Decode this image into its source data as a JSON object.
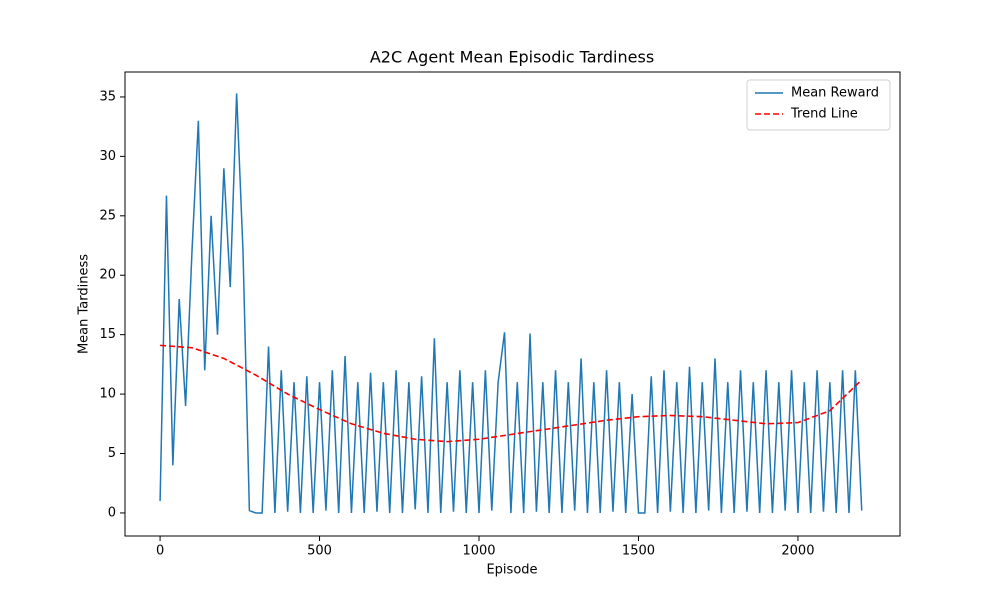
{
  "chart_data": {
    "type": "line",
    "title": "A2C Agent Mean Episodic Tardiness",
    "x_label": "Episode",
    "y_label": "Mean Tardiness",
    "xlim": [
      -110,
      2320
    ],
    "ylim": [
      -1.94,
      37.1
    ],
    "xticks": [
      0,
      500,
      1000,
      1500,
      2000
    ],
    "yticks": [
      0,
      5,
      10,
      15,
      20,
      25,
      30,
      35
    ],
    "legend": "upper right",
    "series": [
      {
        "name": "Mean Reward",
        "color": "#1f77b4",
        "style": "solid",
        "x": [
          0,
          20,
          40,
          60,
          80,
          100,
          120,
          140,
          160,
          180,
          200,
          220,
          240,
          260,
          280,
          300,
          320,
          340,
          360,
          380,
          400,
          420,
          440,
          460,
          480,
          500,
          520,
          540,
          560,
          580,
          600,
          620,
          640,
          660,
          680,
          700,
          720,
          740,
          760,
          780,
          800,
          820,
          840,
          860,
          880,
          900,
          920,
          940,
          960,
          980,
          1000,
          1020,
          1040,
          1060,
          1080,
          1100,
          1120,
          1140,
          1160,
          1180,
          1200,
          1220,
          1240,
          1260,
          1280,
          1300,
          1320,
          1340,
          1360,
          1380,
          1400,
          1420,
          1440,
          1460,
          1480,
          1500,
          1520,
          1540,
          1560,
          1580,
          1600,
          1620,
          1640,
          1660,
          1680,
          1700,
          1720,
          1740,
          1760,
          1780,
          1800,
          1820,
          1840,
          1860,
          1880,
          1900,
          1920,
          1940,
          1960,
          1980,
          2000,
          2020,
          2040,
          2060,
          2080,
          2100,
          2120,
          2140,
          2160,
          2180,
          2200
        ],
        "values": [
          1,
          26.7,
          4,
          18,
          9,
          22,
          33,
          12,
          25,
          15,
          29,
          19,
          35.3,
          22,
          0.2,
          0,
          0,
          14,
          0,
          12,
          0.1,
          11,
          0,
          11.5,
          0,
          11,
          0.2,
          12,
          0,
          13.2,
          0,
          11,
          0,
          11.8,
          0.1,
          11,
          0,
          12,
          0,
          11,
          0.3,
          11.5,
          0,
          14.7,
          0,
          11,
          0.1,
          12,
          0,
          11,
          0,
          12,
          0.2,
          11,
          15.2,
          0,
          11,
          0,
          15.1,
          0.1,
          11,
          0,
          12,
          0,
          11,
          0.2,
          13,
          0,
          11,
          0,
          12,
          0.1,
          11,
          0,
          10,
          0,
          0,
          11.5,
          0,
          12,
          0.1,
          11,
          0,
          12.3,
          0,
          11,
          0.2,
          13,
          0,
          11,
          0,
          12,
          0.1,
          11,
          0,
          12,
          0,
          11,
          0.2,
          12,
          0,
          11,
          0,
          12,
          0.1,
          11,
          0,
          12,
          0,
          12,
          0.2
        ]
      },
      {
        "name": "Trend Line",
        "color": "#ff0000",
        "style": "dashed",
        "x": [
          0,
          100,
          200,
          300,
          400,
          500,
          600,
          700,
          800,
          900,
          1000,
          1100,
          1200,
          1300,
          1400,
          1500,
          1600,
          1700,
          1800,
          1900,
          2000,
          2100,
          2200
        ],
        "values": [
          14.1,
          13.9,
          13.0,
          11.6,
          10.0,
          8.7,
          7.5,
          6.7,
          6.2,
          6.0,
          6.2,
          6.6,
          7.0,
          7.4,
          7.8,
          8.1,
          8.2,
          8.1,
          7.8,
          7.5,
          7.6,
          8.6,
          11.2
        ]
      }
    ]
  }
}
